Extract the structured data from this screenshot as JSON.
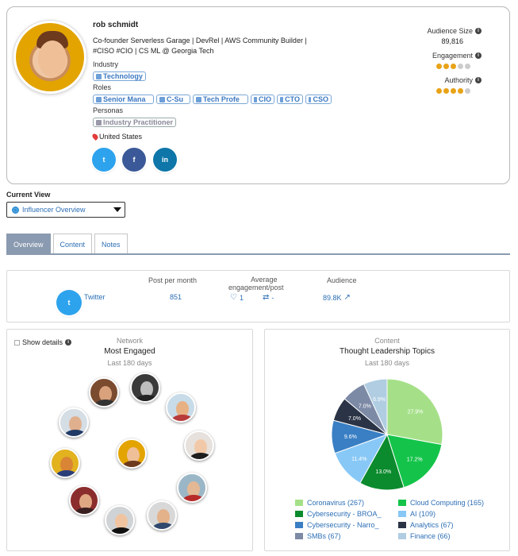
{
  "profile": {
    "name": "rob schmidt",
    "bio_line1": "Co-founder Serverless Garage | DevRel | AWS Community Builder |",
    "bio_line2": "#CISO #CIO | CS ML @ Georgia Tech",
    "industry_label": "Industry",
    "industry_tags": [
      "Technology"
    ],
    "roles_label": "Roles",
    "role_tags": [
      "Senior Mana",
      "C-Su",
      "Tech Profe",
      "CIO",
      "CTO",
      "CSO"
    ],
    "personas_label": "Personas",
    "persona_tags": [
      "Industry Practitioner"
    ],
    "location": "United States",
    "social": {
      "twitter_icon": "t",
      "facebook_icon": "f",
      "linkedin_icon": "in",
      "colors": {
        "twitter": "#2da3ee",
        "facebook": "#3b5998",
        "linkedin": "#0e76a8"
      }
    }
  },
  "metrics": {
    "audience_label": "Audience Size",
    "audience_value": "89,816",
    "engagement_label": "Engagement",
    "engagement_level": 3,
    "authority_label": "Authority",
    "authority_level": 4,
    "max_level": 5,
    "dot_color": "#e8a317"
  },
  "current_view": {
    "label": "Current View",
    "selected": "Influencer Overview"
  },
  "tabs": [
    {
      "label": "Overview",
      "active": true
    },
    {
      "label": "Content",
      "active": false
    },
    {
      "label": "Notes",
      "active": false
    }
  ],
  "stats": {
    "head_posts": "Post per month",
    "head_avg_line1": "Average",
    "head_avg_line2": "engagement/post",
    "head_audience": "Audience",
    "platform": "Twitter",
    "platform_icon": "t",
    "posts_value": "851",
    "likes_value": "1",
    "retweets_value": "-",
    "audience_value": "89.8K"
  },
  "network": {
    "show_details": "Show details",
    "category": "Network",
    "title": "Most Engaged",
    "subtitle": "Last 180 days"
  },
  "content": {
    "category": "Content",
    "title": "Thought Leadership Topics",
    "subtitle": "Last 180 days"
  },
  "chart_data": {
    "type": "pie",
    "categories": [
      "Coronavirus (267)",
      "Cloud Computing (165)",
      "Cybersecurity - BROA_",
      "AI (109)",
      "Cybersecurity - Narro_",
      "Analytics (67)",
      "SMBs (67)",
      "Finance (66)"
    ],
    "values": [
      27.9,
      17.2,
      13.0,
      11.4,
      9.6,
      7.0,
      7.0,
      6.9
    ],
    "labels": [
      "27.9%",
      "17.2%",
      "13.0%",
      "11.4%",
      "9.6%",
      "7.0%",
      "7.0%",
      "6.9%"
    ],
    "colors": [
      "#a5e089",
      "#14c44a",
      "#0b8b2d",
      "#88c8f7",
      "#3a7fc4",
      "#2b3446",
      "#7d8aa6",
      "#b0cde2"
    ],
    "legend_placement": "bottom"
  }
}
